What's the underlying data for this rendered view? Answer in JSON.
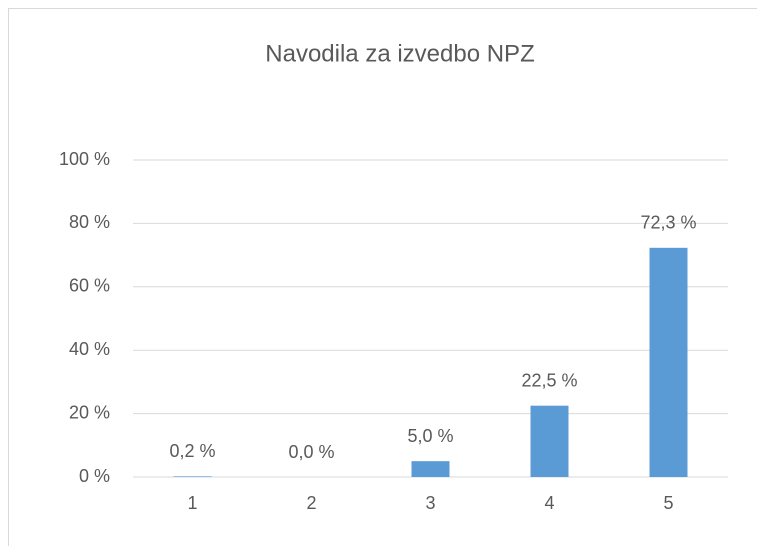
{
  "chart_data": {
    "type": "bar",
    "title": "Navodila za izvedbo NPZ",
    "categories": [
      "1",
      "2",
      "3",
      "4",
      "5"
    ],
    "values": [
      0.2,
      0.0,
      5.0,
      22.5,
      72.3
    ],
    "value_labels": [
      "0,2 %",
      "0,0 %",
      "5,0 %",
      "22,5 %",
      "72,3 %"
    ],
    "color": "#5b9bd5",
    "ylim": [
      0,
      100
    ],
    "yticks": [
      {
        "value": 0,
        "label": "0 %"
      },
      {
        "value": 20,
        "label": "20 %"
      },
      {
        "value": 40,
        "label": "40 %"
      },
      {
        "value": 60,
        "label": "60 %"
      },
      {
        "value": 80,
        "label": "80 %"
      },
      {
        "value": 100,
        "label": "100 %"
      }
    ],
    "grid": true
  }
}
